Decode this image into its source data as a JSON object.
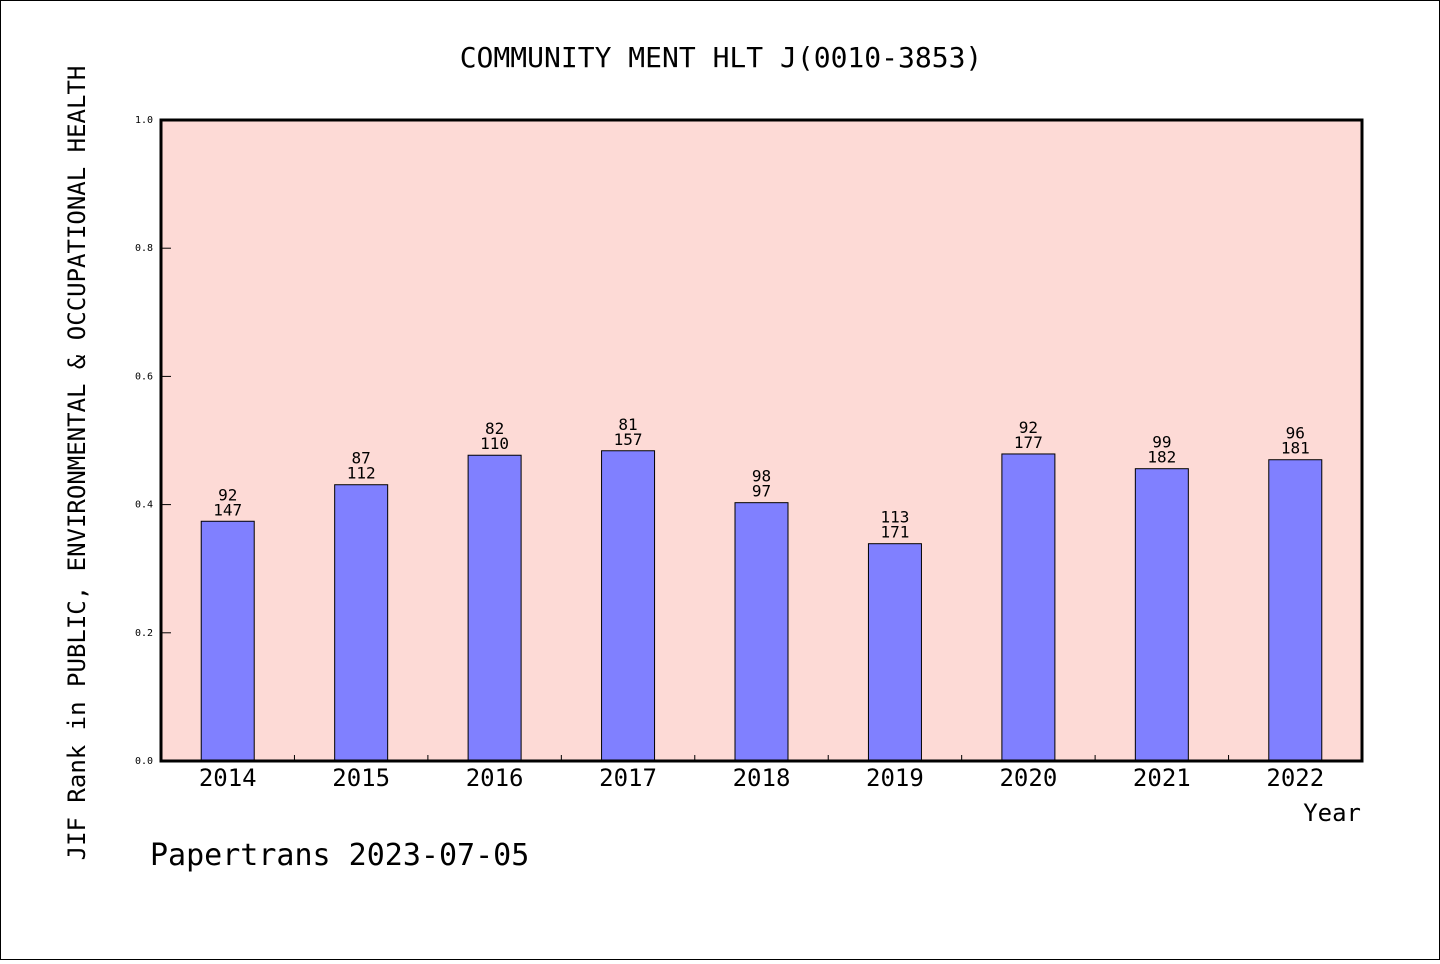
{
  "chart_data": {
    "type": "bar",
    "title": "COMMUNITY MENT HLT J(0010-3853)",
    "xlabel": "Year",
    "ylabel": "JIF Rank in PUBLIC, ENVIRONMENTAL & OCCUPATIONAL HEALTH",
    "categories": [
      "2014",
      "2015",
      "2016",
      "2017",
      "2018",
      "2019",
      "2020",
      "2021",
      "2022"
    ],
    "values": [
      0.374,
      0.431,
      0.477,
      0.484,
      0.403,
      0.339,
      0.479,
      0.456,
      0.47
    ],
    "labels_top": [
      "92",
      "87",
      "82",
      "81",
      "98",
      "113",
      "92",
      "99",
      "96"
    ],
    "labels_bottom": [
      "147",
      "112",
      "110",
      "157",
      "97",
      "171",
      "177",
      "182",
      "181"
    ],
    "ylim": [
      0.0,
      1.0
    ],
    "yticks": [
      "0.0",
      "0.2",
      "0.4",
      "0.6",
      "0.8",
      "1.0"
    ],
    "grid": false,
    "colors": {
      "plot_background": "#fddad6",
      "bar": "#8080ff"
    }
  },
  "footer": "Papertrans 2023-07-05"
}
